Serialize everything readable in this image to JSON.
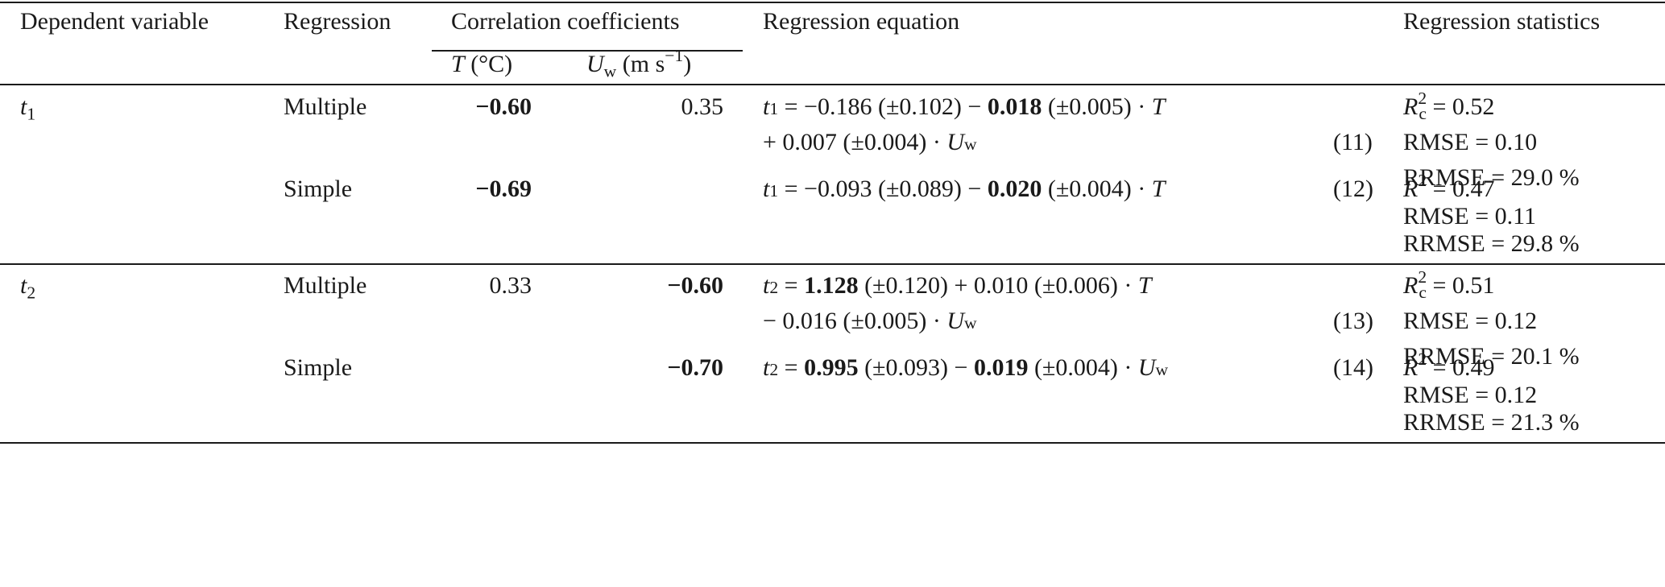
{
  "header": {
    "dependent_variable": "Dependent variable",
    "regression": "Regression",
    "correlation_coefficients": "Correlation coefficients",
    "regression_equation": "Regression equation",
    "regression_statistics": "Regression statistics",
    "col_T_symbol": "T",
    "col_T_unit": "(°C)",
    "col_Uw_symbol": "U",
    "col_Uw_sub": "w",
    "col_Uw_unit_open": "(m s",
    "col_Uw_unit_exp": "−1",
    "col_Uw_unit_close": ")"
  },
  "groups": [
    {
      "dependent_var": "t",
      "dependent_sub": "1",
      "rows": [
        {
          "regression": "Multiple",
          "corr_T": "−0.60",
          "corr_T_bold": true,
          "corr_Uw": "0.35",
          "corr_Uw_bold": false,
          "equation_lines": [
            "t1 = −0.186 (±0.102) − 0.018 (±0.005) · T",
            "+ 0.007 (±0.004) · Uw"
          ],
          "equation_number": "(11)",
          "stats": [
            "Rc2 = 0.52",
            "RMSE = 0.10",
            "RRMSE = 29.0 %"
          ]
        },
        {
          "regression": "Simple",
          "corr_T": "−0.69",
          "corr_T_bold": true,
          "corr_Uw": "",
          "equation_lines": [
            "t1 = −0.093 (±0.089) − 0.020 (±0.004) · T"
          ],
          "equation_number": "(12)",
          "stats": [
            "R2 = 0.47",
            "RMSE = 0.11",
            "RRMSE = 29.8 %"
          ]
        }
      ]
    },
    {
      "dependent_var": "t",
      "dependent_sub": "2",
      "rows": [
        {
          "regression": "Multiple",
          "corr_T": "0.33",
          "corr_T_bold": false,
          "corr_Uw": "−0.60",
          "corr_Uw_bold": true,
          "equation_lines": [
            "t2 = 1.128 (±0.120) + 0.010 (±0.006) · T",
            "− 0.016 (±0.005) · Uw"
          ],
          "equation_number": "(13)",
          "stats": [
            "Rc2 = 0.51",
            "RMSE = 0.12",
            "RRMSE = 20.1 %"
          ]
        },
        {
          "regression": "Simple",
          "corr_T": "",
          "corr_Uw": "−0.70",
          "corr_Uw_bold": true,
          "equation_lines": [
            "t2 = 0.995 (±0.093) − 0.019 (±0.004) · Uw"
          ],
          "equation_number": "(14)",
          "stats": [
            "R2 = 0.49",
            "RMSE = 0.12",
            "RRMSE = 21.3 %"
          ]
        }
      ]
    }
  ],
  "parts": {
    "r1_eq_a": "= −0.186 (±0.102) −",
    "r1_eq_bold": "0.018",
    "r1_eq_b": "(±0.005) ·",
    "r1_eq2_a": "+ 0.007 (±0.004) ·",
    "r2_eq_a": "= −0.093 (±0.089) −",
    "r2_eq_bold": "0.020",
    "r2_eq_b": "(±0.004) ·",
    "r3_eq_bold": "1.128",
    "r3_eq_a": "(±0.120) + 0.010 (±0.006) ·",
    "r3_eq2_a": "− 0.016 (±0.005) ·",
    "r4_eq_bold1": "0.995",
    "r4_eq_a": "(±0.093) −",
    "r4_eq_bold2": "0.019",
    "r4_eq_b": "(±0.004) ·",
    "eq_equals": "=",
    "sym_t": "t",
    "sym_T": "T",
    "sym_U": "U",
    "sub_w": "w",
    "sym_R": "R",
    "sub_c": "c",
    "sup_2": "2",
    "stat_r1_R": "= 0.52",
    "stat_r1_rmse": "RMSE = 0.10",
    "stat_r1_rrmse": "RRMSE = 29.0 %",
    "stat_r2_R": "= 0.47",
    "stat_r2_rmse": "RMSE = 0.11",
    "stat_r2_rrmse": "RRMSE = 29.8 %",
    "stat_r3_R": "= 0.51",
    "stat_r3_rmse": "RMSE = 0.12",
    "stat_r3_rrmse": "RRMSE = 20.1 %",
    "stat_r4_R": "= 0.49",
    "stat_r4_rmse": "RMSE = 0.12",
    "stat_r4_rrmse": "RRMSE = 21.3 %"
  }
}
